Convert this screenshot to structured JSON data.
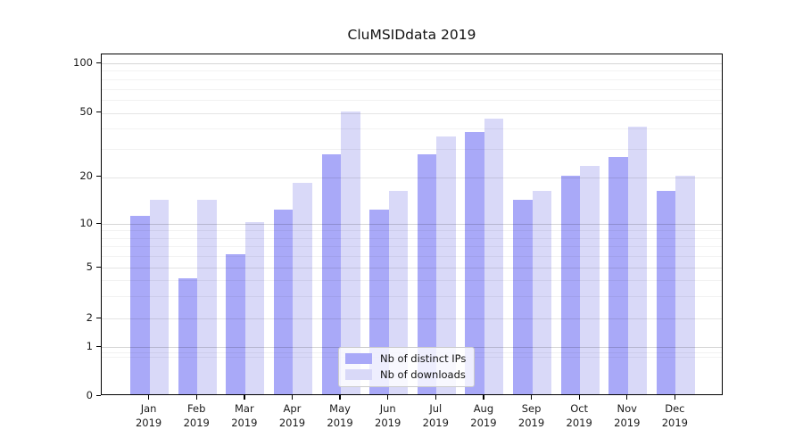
{
  "title": "CluMSIDdata 2019",
  "chart_data": {
    "type": "bar",
    "title": "CluMSIDdata 2019",
    "categories": [
      "Jan 2019",
      "Feb 2019",
      "Mar 2019",
      "Apr 2019",
      "May 2019",
      "Jun 2019",
      "Jul 2019",
      "Aug 2019",
      "Sep 2019",
      "Oct 2019",
      "Nov 2019",
      "Dec 2019"
    ],
    "series": [
      {
        "name": "Nb of distinct IPs",
        "color": "#a9a9f8",
        "values": [
          11,
          4,
          6,
          12,
          27,
          12,
          27,
          37,
          14,
          20,
          26,
          16
        ]
      },
      {
        "name": "Nb of downloads",
        "color": "#d9d9f8",
        "values": [
          14,
          14,
          10,
          18,
          50,
          16,
          35,
          45,
          16,
          23,
          40,
          20
        ]
      }
    ],
    "xlabel": "",
    "ylabel": "",
    "yscale": "symlog",
    "ylim": [
      0,
      100
    ],
    "yticks": [
      100,
      50,
      20,
      10,
      5,
      2,
      1,
      0
    ],
    "decade_ticks": [
      1,
      10,
      100
    ],
    "minor_gridlines": [
      0.8,
      0.9,
      3,
      4,
      6,
      7,
      8,
      9,
      30,
      40,
      60,
      70,
      80,
      90
    ],
    "grid": "on",
    "legend_position": "lower center"
  }
}
